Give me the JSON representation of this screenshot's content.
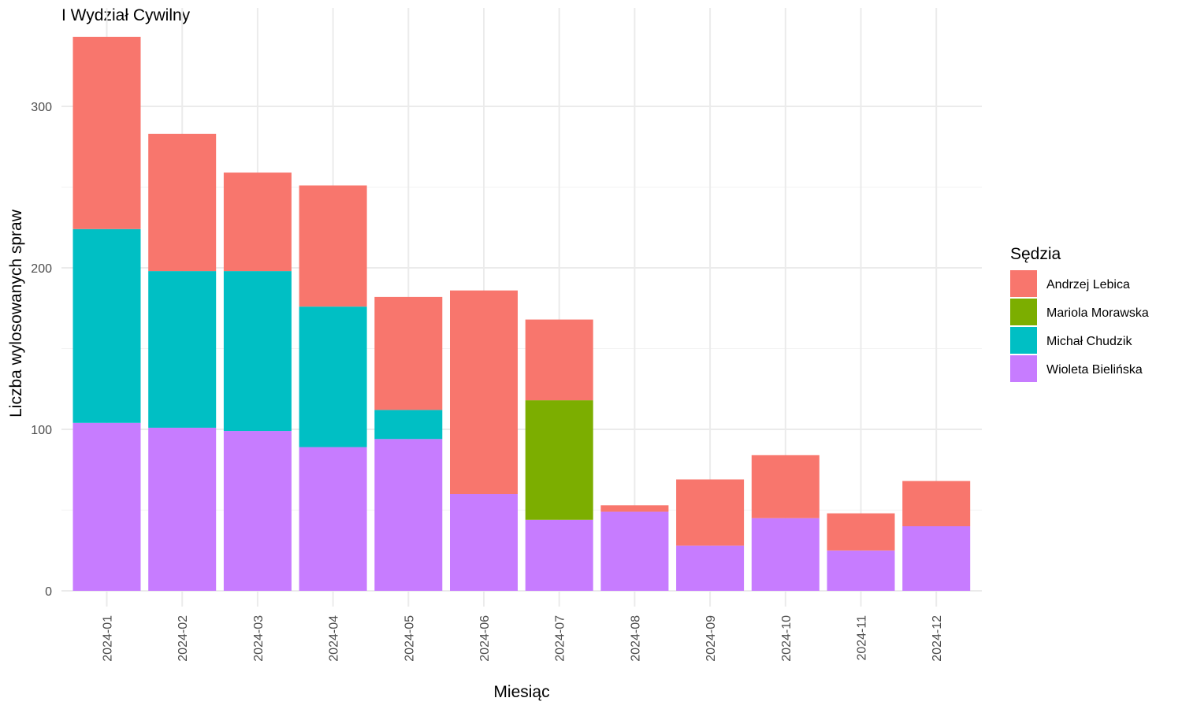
{
  "chart_data": {
    "type": "bar",
    "stacked": true,
    "title": "I Wydział Cywilny",
    "xlabel": "Miesiąc",
    "ylabel": "Liczba wylosowanych spraw",
    "ylim": [
      0,
      345
    ],
    "yticks": [
      0,
      100,
      200,
      300
    ],
    "grid": true,
    "legend_title": "Sędzia",
    "legend_position": "right",
    "categories": [
      "2024-01",
      "2024-02",
      "2024-03",
      "2024-04",
      "2024-05",
      "2024-06",
      "2024-07",
      "2024-08",
      "2024-09",
      "2024-10",
      "2024-11",
      "2024-12"
    ],
    "series": [
      {
        "name": "Wioleta Bielińska",
        "color": "#C77CFF",
        "values": [
          104,
          101,
          99,
          89,
          94,
          60,
          44,
          49,
          28,
          45,
          25,
          40
        ]
      },
      {
        "name": "Michał Chudzik",
        "color": "#00BFC4",
        "values": [
          120,
          97,
          99,
          87,
          18,
          0,
          0,
          0,
          0,
          0,
          0,
          0
        ]
      },
      {
        "name": "Mariola Morawska",
        "color": "#7CAE00",
        "values": [
          0,
          0,
          0,
          0,
          0,
          0,
          74,
          0,
          0,
          0,
          0,
          0
        ]
      },
      {
        "name": "Andrzej Lebica",
        "color": "#F8766D",
        "values": [
          119,
          85,
          61,
          75,
          70,
          126,
          50,
          4,
          41,
          39,
          23,
          28
        ]
      }
    ],
    "legend_order": [
      "Andrzej Lebica",
      "Mariola Morawska",
      "Michał Chudzik",
      "Wioleta Bielińska"
    ]
  }
}
